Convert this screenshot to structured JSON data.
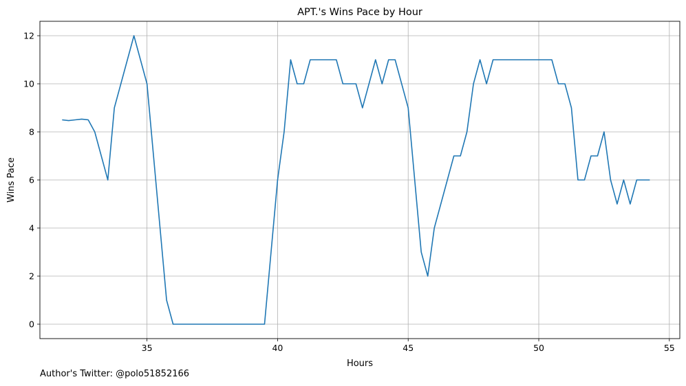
{
  "footer": {
    "author_note": "Author's Twitter: @polo51852166"
  },
  "colors": {
    "line": "#1f77b4",
    "grid": "#b0b0b0",
    "axis": "#000000"
  },
  "chart_data": {
    "type": "line",
    "title": "APT.'s Wins Pace by Hour",
    "xlabel": "Hours",
    "ylabel": "Wins Pace",
    "xlim": [
      30.9,
      55.4
    ],
    "ylim": [
      -0.6,
      12.6
    ],
    "xticks": [
      35,
      40,
      45,
      50,
      55
    ],
    "yticks": [
      0,
      2,
      4,
      6,
      8,
      10,
      12
    ],
    "grid": true,
    "series": [
      {
        "x": [
          31.75,
          32.0,
          32.25,
          32.5,
          32.75,
          33.0,
          33.25,
          33.5,
          33.75,
          34.0,
          34.25,
          34.5,
          34.75,
          35.0,
          35.25,
          35.5,
          35.75,
          36.0,
          36.25,
          39.5,
          39.75,
          40.0,
          40.25,
          40.5,
          40.75,
          41.0,
          41.25,
          41.5,
          41.75,
          42.0,
          42.25,
          42.5,
          42.75,
          43.0,
          43.25,
          43.5,
          43.75,
          44.0,
          44.25,
          44.5,
          44.75,
          45.0,
          45.25,
          45.5,
          45.75,
          46.0,
          46.25,
          46.5,
          46.75,
          47.0,
          47.25,
          47.5,
          47.75,
          48.0,
          48.25,
          48.5,
          48.75,
          49.0,
          49.25,
          49.5,
          49.75,
          50.0,
          50.25,
          50.5,
          50.75,
          51.0,
          51.25,
          51.5,
          51.75,
          52.0,
          52.25,
          52.5,
          52.75,
          53.0,
          53.25,
          53.5,
          53.75,
          54.0,
          54.25
        ],
        "y": [
          8.5,
          8.47,
          8.5,
          8.53,
          8.5,
          8.0,
          7.0,
          6.0,
          9.0,
          10.0,
          11.0,
          12.0,
          11.0,
          10.0,
          7.0,
          4.0,
          1.0,
          0.0,
          0.0,
          0.0,
          3.0,
          6.0,
          8.0,
          11.0,
          10.0,
          10.0,
          11.0,
          11.0,
          11.0,
          11.0,
          11.0,
          10.0,
          10.0,
          10.0,
          9.0,
          10.0,
          11.0,
          10.0,
          11.0,
          11.0,
          10.0,
          9.0,
          6.0,
          3.0,
          2.0,
          4.0,
          5.0,
          6.0,
          7.0,
          7.0,
          8.0,
          10.0,
          11.0,
          10.0,
          11.0,
          11.0,
          11.0,
          11.0,
          11.0,
          11.0,
          11.0,
          11.0,
          11.0,
          11.0,
          10.0,
          10.0,
          9.0,
          6.0,
          6.0,
          7.0,
          7.0,
          8.0,
          6.0,
          5.0,
          6.0,
          5.0,
          6.0,
          6.0,
          6.0
        ]
      }
    ]
  }
}
